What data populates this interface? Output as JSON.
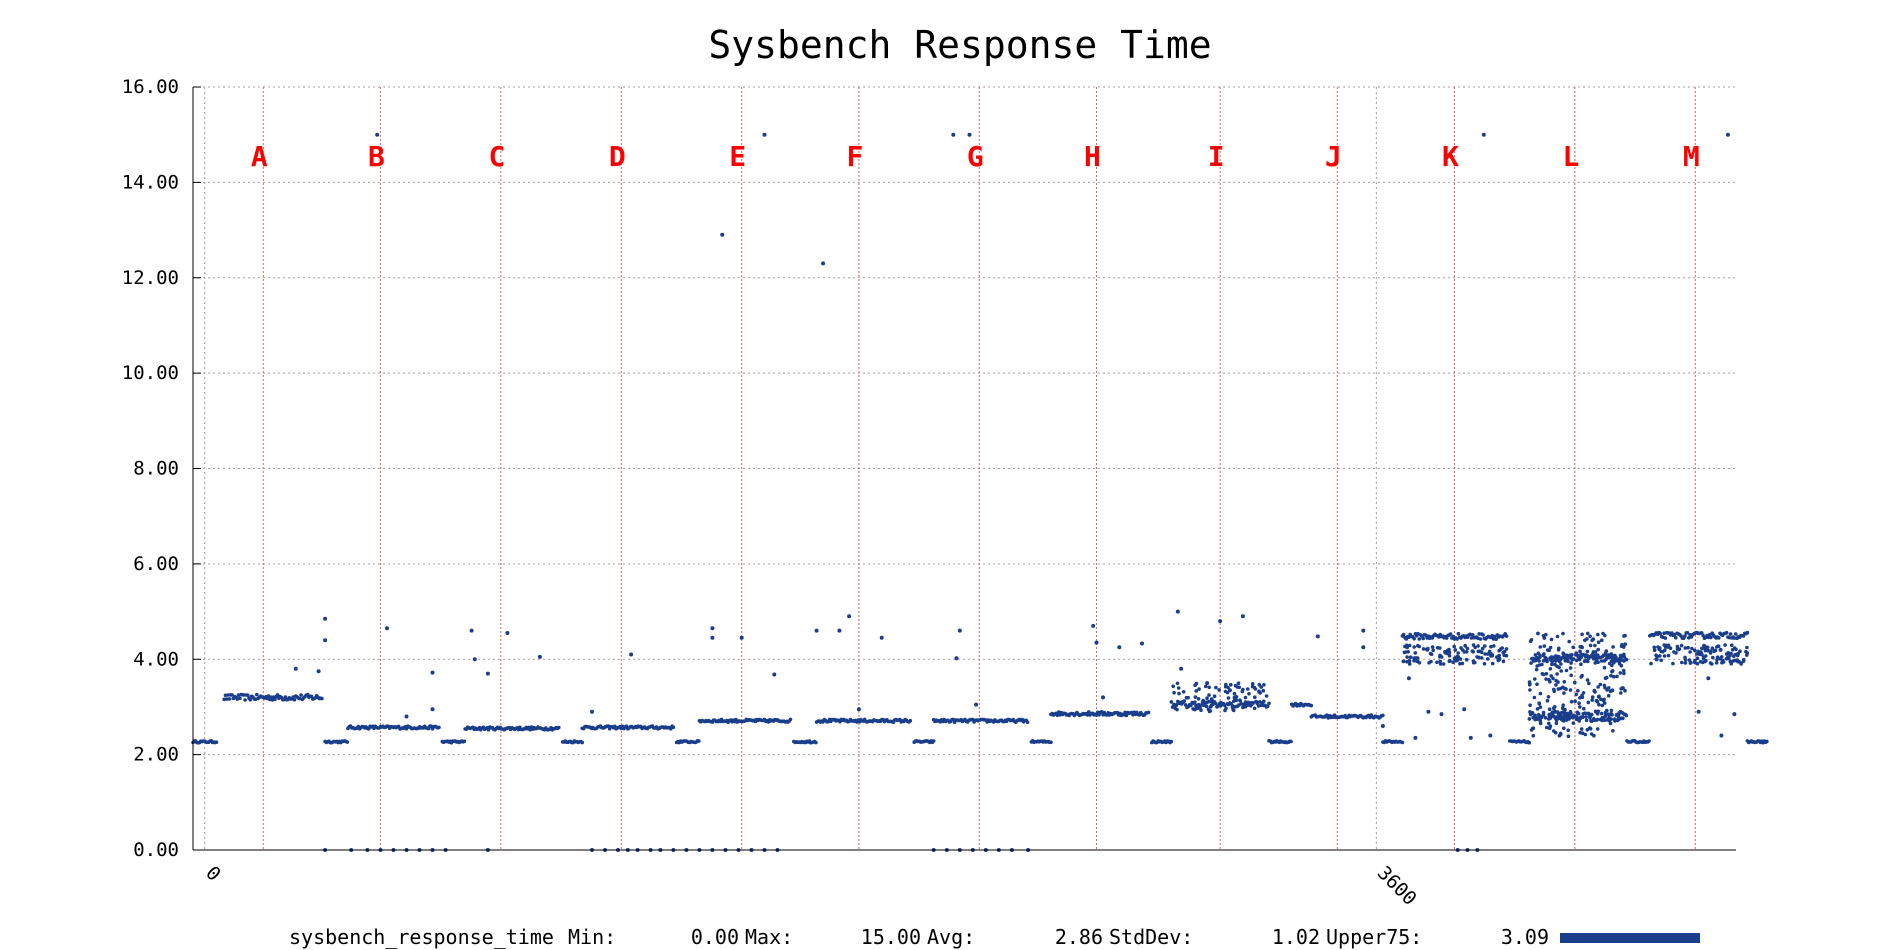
{
  "chart_data": {
    "type": "scatter",
    "title": "Sysbench Response Time",
    "ylim": [
      0,
      16
    ],
    "y_ticks": [
      "0.00",
      "2.00",
      "4.00",
      "6.00",
      "8.00",
      "10.00",
      "12.00",
      "14.00",
      "16.00"
    ],
    "xlim": [
      -36,
      4705
    ],
    "x_ticks": [
      {
        "value": 0,
        "label": "0"
      },
      {
        "value": 3600,
        "label": "3600"
      }
    ],
    "grid": true,
    "phase_markers": [
      {
        "label": "A",
        "x": 180
      },
      {
        "label": "B",
        "x": 540
      },
      {
        "label": "C",
        "x": 910
      },
      {
        "label": "D",
        "x": 1280
      },
      {
        "label": "E",
        "x": 1650
      },
      {
        "label": "F",
        "x": 2010
      },
      {
        "label": "G",
        "x": 2380
      },
      {
        "label": "H",
        "x": 2740
      },
      {
        "label": "I",
        "x": 3120
      },
      {
        "label": "J",
        "x": 3480
      },
      {
        "label": "K",
        "x": 3840
      },
      {
        "label": "L",
        "x": 4210
      },
      {
        "label": "M",
        "x": 4580
      }
    ],
    "series": [
      {
        "name": "sysbench_response_time",
        "color": "#1a3e8c",
        "segments": [
          {
            "x0": -36,
            "x1": 36,
            "y": 2.27,
            "spread": 0.02
          },
          {
            "x0": 60,
            "x1": 360,
            "y": 3.2,
            "spread": 0.06
          },
          {
            "x0": 370,
            "x1": 440,
            "y": 2.27,
            "spread": 0.02
          },
          {
            "x0": 440,
            "x1": 720,
            "y": 2.57,
            "spread": 0.03
          },
          {
            "x0": 730,
            "x1": 800,
            "y": 2.27,
            "spread": 0.02
          },
          {
            "x0": 800,
            "x1": 1090,
            "y": 2.55,
            "spread": 0.03
          },
          {
            "x0": 1100,
            "x1": 1160,
            "y": 2.27,
            "spread": 0.02
          },
          {
            "x0": 1160,
            "x1": 1440,
            "y": 2.57,
            "spread": 0.03
          },
          {
            "x0": 1450,
            "x1": 1520,
            "y": 2.27,
            "spread": 0.02
          },
          {
            "x0": 1520,
            "x1": 1800,
            "y": 2.71,
            "spread": 0.03
          },
          {
            "x0": 1810,
            "x1": 1880,
            "y": 2.27,
            "spread": 0.02
          },
          {
            "x0": 1880,
            "x1": 2170,
            "y": 2.71,
            "spread": 0.03
          },
          {
            "x0": 2180,
            "x1": 2240,
            "y": 2.27,
            "spread": 0.02
          },
          {
            "x0": 2240,
            "x1": 2530,
            "y": 2.71,
            "spread": 0.03
          },
          {
            "x0": 2540,
            "x1": 2600,
            "y": 2.27,
            "spread": 0.02
          },
          {
            "x0": 2600,
            "x1": 2900,
            "y": 2.86,
            "spread": 0.04
          },
          {
            "x0": 2910,
            "x1": 2970,
            "y": 2.27,
            "spread": 0.02
          },
          {
            "x0": 2970,
            "x1": 3270,
            "y": 3.05,
            "spread": 0.08
          },
          {
            "x0": 3270,
            "x1": 3340,
            "y": 2.27,
            "spread": 0.02
          },
          {
            "x0": 3340,
            "x1": 3400,
            "y": 3.05,
            "spread": 0.03
          },
          {
            "x0": 3400,
            "x1": 3620,
            "y": 2.8,
            "spread": 0.03
          },
          {
            "x0": 3620,
            "x1": 3680,
            "y": 2.27,
            "spread": 0.02
          },
          {
            "x0": 3680,
            "x1": 4000,
            "y": 4.48,
            "spread": 0.06
          },
          {
            "x0": 4010,
            "x1": 4070,
            "y": 2.27,
            "spread": 0.02
          },
          {
            "x0": 4370,
            "x1": 4440,
            "y": 2.27,
            "spread": 0.02
          },
          {
            "x0": 4440,
            "x1": 4740,
            "y": 4.5,
            "spread": 0.06
          },
          {
            "x0": 4740,
            "x1": 4800,
            "y": 2.27,
            "spread": 0.02
          }
        ],
        "scatter_bands": [
          {
            "x0": 2970,
            "x1": 3270,
            "y0": 2.9,
            "y1": 3.5,
            "count": 90
          },
          {
            "x0": 3680,
            "x1": 4000,
            "y0": 3.9,
            "y1": 4.3,
            "count": 120
          },
          {
            "x0": 4070,
            "x1": 4370,
            "y0": 2.35,
            "y1": 4.55,
            "count": 260
          },
          {
            "x0": 4070,
            "x1": 4370,
            "y0": 3.95,
            "y1": 4.1,
            "count": 120
          },
          {
            "x0": 4070,
            "x1": 4370,
            "y0": 2.7,
            "y1": 2.9,
            "count": 120
          },
          {
            "x0": 4440,
            "x1": 4740,
            "y0": 3.9,
            "y1": 4.3,
            "count": 130
          }
        ],
        "extra_points": [
          [
            530,
            15.0
          ],
          [
            1720,
            15.0
          ],
          [
            2300,
            15.0
          ],
          [
            2350,
            15.0
          ],
          [
            3930,
            15.0
          ],
          [
            4680,
            15.0
          ],
          [
            1590,
            12.9
          ],
          [
            1900,
            12.3
          ],
          [
            370,
            4.85
          ],
          [
            370,
            4.4
          ],
          [
            560,
            4.65
          ],
          [
            820,
            4.6
          ],
          [
            930,
            4.55
          ],
          [
            1980,
            4.9
          ],
          [
            1560,
            4.65
          ],
          [
            1560,
            4.45
          ],
          [
            1650,
            4.45
          ],
          [
            1880,
            4.6
          ],
          [
            1950,
            4.6
          ],
          [
            2730,
            4.7
          ],
          [
            2740,
            4.35
          ],
          [
            2990,
            5.0
          ],
          [
            3120,
            4.8
          ],
          [
            3190,
            4.9
          ],
          [
            3420,
            4.48
          ],
          [
            3560,
            4.6
          ],
          [
            3560,
            4.25
          ],
          [
            280,
            3.8
          ],
          [
            350,
            3.75
          ],
          [
            700,
            3.72
          ],
          [
            1750,
            3.68
          ],
          [
            2320,
            4.6
          ],
          [
            2310,
            4.02
          ],
          [
            2880,
            4.33
          ],
          [
            2810,
            4.25
          ],
          [
            1310,
            4.1
          ],
          [
            830,
            4.0
          ],
          [
            870,
            3.7
          ],
          [
            3700,
            3.6
          ],
          [
            3800,
            2.85
          ],
          [
            3720,
            2.35
          ],
          [
            3760,
            2.9
          ],
          [
            4590,
            2.9
          ],
          [
            4660,
            2.4
          ],
          [
            4700,
            2.85
          ],
          [
            620,
            2.8
          ],
          [
            700,
            2.95
          ],
          [
            1190,
            2.9
          ],
          [
            2010,
            2.95
          ],
          [
            2370,
            3.05
          ],
          [
            2760,
            3.2
          ],
          [
            3000,
            3.8
          ],
          [
            3080,
            3.5
          ],
          [
            3150,
            3.35
          ],
          [
            3620,
            2.6
          ],
          [
            3950,
            2.4
          ],
          [
            3890,
            2.35
          ],
          [
            3870,
            2.95
          ],
          [
            4620,
            3.6
          ],
          [
            1030,
            4.05
          ],
          [
            2080,
            4.45
          ]
        ],
        "zero_points": [
          370,
          450,
          500,
          540,
          580,
          620,
          660,
          700,
          740,
          870,
          1190,
          1230,
          1270,
          1300,
          1330,
          1370,
          1400,
          1440,
          1480,
          1520,
          1560,
          1600,
          1640,
          1680,
          1720,
          1760,
          2240,
          2280,
          2320,
          2360,
          2400,
          2440,
          2480,
          2530,
          3850,
          3880,
          3910
        ]
      }
    ],
    "stats": {
      "series_name": "sysbench_response_time",
      "min_label": "Min:",
      "min": "0.00",
      "max_label": "Max:",
      "max": "15.00",
      "avg_label": "Avg:",
      "avg": "2.86",
      "stddev_label": "StdDev:",
      "stddev": "1.02",
      "upper75_label": "Upper75:",
      "upper75": "3.09"
    }
  }
}
